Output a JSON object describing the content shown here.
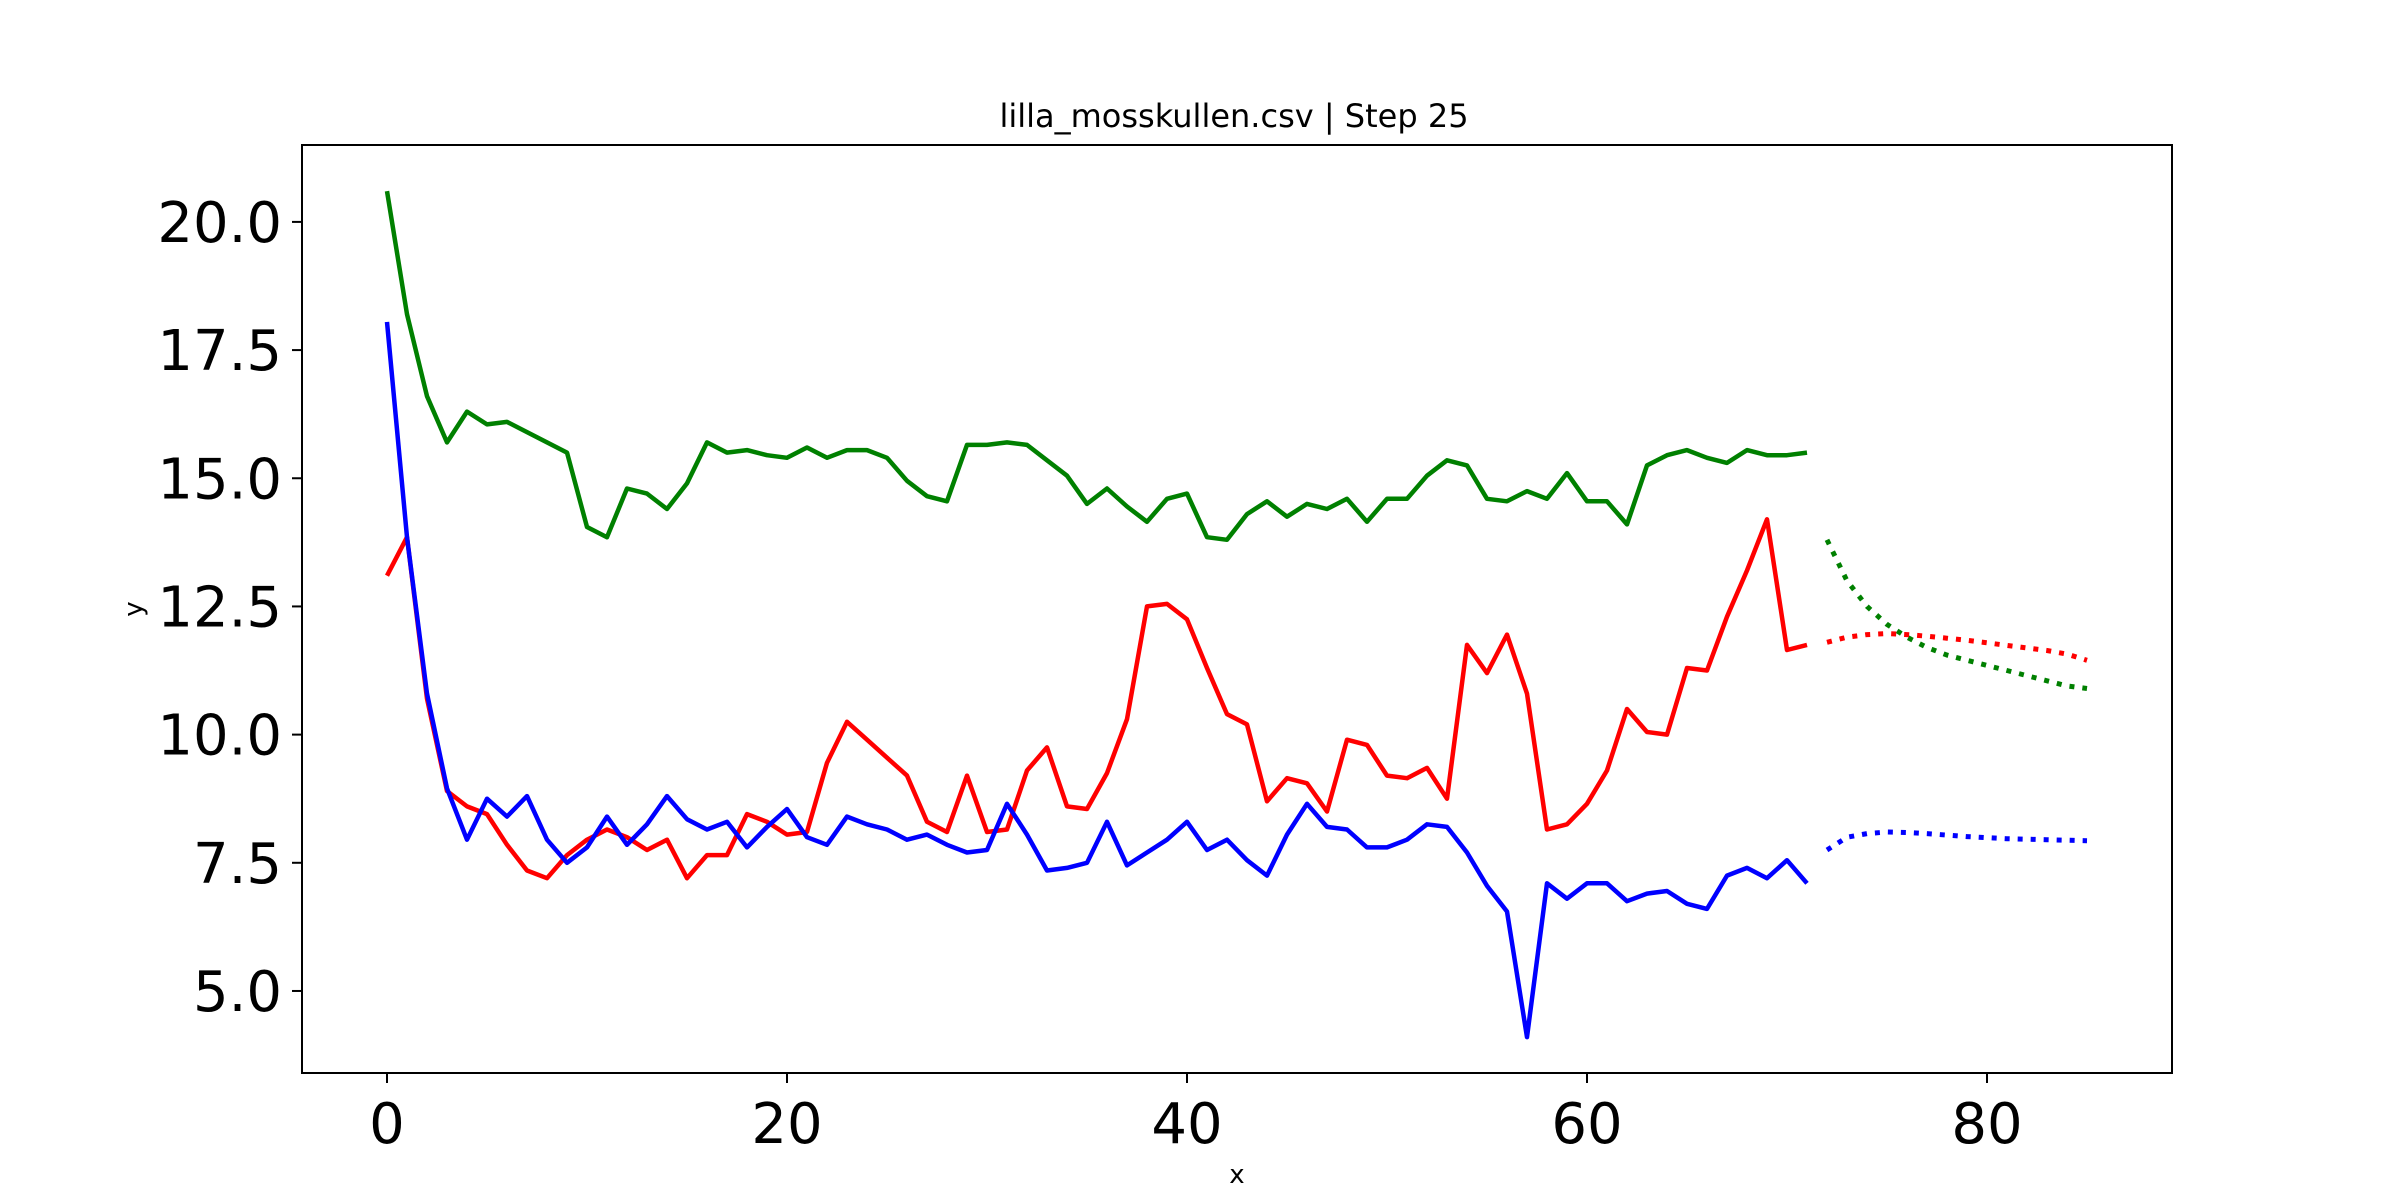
{
  "chart_data": {
    "type": "line",
    "title": "lilla_mosskullen.csv | Step 25",
    "xlabel": "x",
    "ylabel": "y",
    "xlim": [
      -4.25,
      89.25
    ],
    "ylim": [
      3.4,
      21.5
    ],
    "x_ticks": [
      0,
      20,
      40,
      60,
      80
    ],
    "x_tick_labels": [
      "0",
      "20",
      "40",
      "60",
      "80"
    ],
    "y_ticks": [
      5.0,
      7.5,
      10.0,
      12.5,
      15.0,
      17.5,
      20.0
    ],
    "y_tick_labels": [
      "5.0",
      "7.5",
      "10.0",
      "12.5",
      "15.0",
      "17.5",
      "20.0"
    ],
    "grid": false,
    "legend": "none",
    "series": [
      {
        "color": "#008000",
        "style": "solid",
        "x_start": 0,
        "values": [
          20.6,
          18.2,
          16.6,
          15.7,
          16.3,
          16.05,
          16.1,
          15.9,
          15.7,
          15.5,
          14.05,
          13.85,
          14.8,
          14.7,
          14.4,
          14.9,
          15.7,
          15.5,
          15.55,
          15.45,
          15.4,
          15.6,
          15.4,
          15.55,
          15.55,
          15.4,
          14.95,
          14.65,
          14.55,
          15.65,
          15.65,
          15.7,
          15.65,
          15.35,
          15.05,
          14.5,
          14.8,
          14.45,
          14.15,
          14.6,
          14.7,
          13.85,
          13.8,
          14.3,
          14.55,
          14.25,
          14.5,
          14.4,
          14.6,
          14.15,
          14.6,
          14.6,
          15.05,
          15.35,
          15.25,
          14.6,
          14.55,
          14.75,
          14.6,
          15.1,
          14.55,
          14.55,
          14.1,
          15.25,
          15.45,
          15.55,
          15.4,
          15.3,
          15.55,
          15.45,
          15.45,
          15.5
        ]
      },
      {
        "color": "#ff0000",
        "style": "solid",
        "x_start": 0,
        "values": [
          13.1,
          13.85,
          10.7,
          8.9,
          8.6,
          8.45,
          7.85,
          7.35,
          7.2,
          7.65,
          7.95,
          8.15,
          8.0,
          7.75,
          7.95,
          7.2,
          7.65,
          7.65,
          8.45,
          8.3,
          8.05,
          8.1,
          9.45,
          10.25,
          9.9,
          9.55,
          9.2,
          8.3,
          8.1,
          9.2,
          8.1,
          8.15,
          9.3,
          9.75,
          8.6,
          8.55,
          9.25,
          10.3,
          12.5,
          12.55,
          12.25,
          11.3,
          10.4,
          10.2,
          8.7,
          9.15,
          9.05,
          8.5,
          9.9,
          9.8,
          9.2,
          9.15,
          9.35,
          8.75,
          11.75,
          11.2,
          11.95,
          10.8,
          8.15,
          8.25,
          8.65,
          9.3,
          10.5,
          10.05,
          10.0,
          11.3,
          11.25,
          12.3,
          13.2,
          14.2,
          11.65,
          11.75
        ]
      },
      {
        "color": "#0000ff",
        "style": "solid",
        "x_start": 0,
        "values": [
          18.05,
          13.85,
          10.8,
          8.95,
          7.95,
          8.75,
          8.4,
          8.8,
          7.95,
          7.5,
          7.8,
          8.4,
          7.85,
          8.25,
          8.8,
          8.35,
          8.15,
          8.3,
          7.8,
          8.2,
          8.55,
          8.0,
          7.85,
          8.4,
          8.25,
          8.15,
          7.95,
          8.05,
          7.85,
          7.7,
          7.75,
          8.65,
          8.05,
          7.35,
          7.4,
          7.5,
          8.3,
          7.45,
          7.7,
          7.95,
          8.3,
          7.75,
          7.95,
          7.55,
          7.25,
          8.05,
          8.65,
          8.2,
          8.15,
          7.8,
          7.8,
          7.95,
          8.25,
          8.2,
          7.7,
          7.05,
          6.55,
          4.1,
          7.1,
          6.8,
          7.1,
          7.1,
          6.75,
          6.9,
          6.95,
          6.7,
          6.6,
          7.25,
          7.4,
          7.2,
          7.55,
          7.1
        ]
      },
      {
        "color": "#008000",
        "style": "dotted",
        "x_start": 72,
        "values": [
          13.8,
          13.0,
          12.5,
          12.15,
          11.9,
          11.7,
          11.55,
          11.45,
          11.35,
          11.25,
          11.15,
          11.05,
          10.95,
          10.9
        ]
      },
      {
        "color": "#ff0000",
        "style": "dotted",
        "x_start": 72,
        "values": [
          11.8,
          11.9,
          11.95,
          11.97,
          11.95,
          11.92,
          11.88,
          11.84,
          11.79,
          11.74,
          11.69,
          11.64,
          11.57,
          11.45
        ]
      },
      {
        "color": "#0000ff",
        "style": "dotted",
        "x_start": 72,
        "values": [
          7.75,
          8.0,
          8.07,
          8.1,
          8.09,
          8.07,
          8.04,
          8.01,
          7.99,
          7.97,
          7.96,
          7.95,
          7.94,
          7.93
        ]
      }
    ]
  }
}
